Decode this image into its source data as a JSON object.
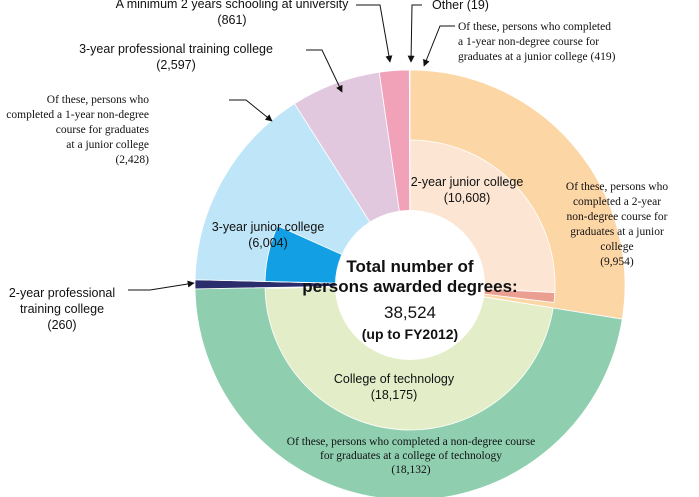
{
  "chart_data": {
    "type": "pie",
    "title": "Total number of persons awarded degrees:",
    "total_label": "Total number of persons awarded degrees:",
    "total_value": "38,524",
    "total_period": "(up to FY2012)",
    "outer_ring": [
      {
        "name": "2-year junior college",
        "value": 10608,
        "value_label": "(10,608)",
        "color": "#fdd6a6"
      },
      {
        "name": "College of technology",
        "value": 18175,
        "value_label": "(18,175)",
        "color": "#8fcfb0"
      },
      {
        "name": "2-year professional training college",
        "value": 260,
        "value_label": "(260)",
        "color": "#2b2c6b"
      },
      {
        "name": "3-year junior college",
        "value": 6004,
        "value_label": "(6,004)",
        "color": "#bfe6f8"
      },
      {
        "name": "3-year professional training college",
        "value": 2597,
        "value_label": "(2,597)",
        "color": "#e2c8de"
      },
      {
        "name": "A minimum 2 years schooling at university",
        "value": 861,
        "value_label": "(861)",
        "color": "#f2a2b8"
      },
      {
        "name": "Other",
        "value": 19,
        "value_label": "(19)",
        "color": "#2a56a4"
      }
    ],
    "inner_subsets": [
      {
        "parent": "2-year junior college",
        "name": "Of these, persons who completed a 2-year non-degree course for graduates at a junior college",
        "value": 9954,
        "value_label": "(9,954)",
        "color": "#fce5d2"
      },
      {
        "parent": "2-year junior college",
        "name": "Of these, persons who completed a 1-year non-degree course for graduates at a junior college",
        "value": 419,
        "value_label": "(419)",
        "color": "#ea9f90"
      },
      {
        "parent": "College of technology",
        "name": "Of these, persons who completed a non-degree course for graduates at a college of technology",
        "value": 18132,
        "value_label": "(18,132)",
        "color": "#e3eec9"
      },
      {
        "parent": "3-year junior college",
        "name": "Of these, persons who completed a 1-year non-degree course for graduates at a junior college",
        "value": 2428,
        "value_label": "(2,428)",
        "color": "#129fe3"
      }
    ],
    "labels": {
      "jc2": {
        "lines": [
          "2-year junior college",
          "(10,608)"
        ]
      },
      "tech": {
        "lines": [
          "College of technology",
          "(18,175)"
        ]
      },
      "jc3": {
        "lines": [
          "3-year junior college",
          "(6,004)"
        ]
      },
      "ptc2": {
        "lines": [
          "2-year professional",
          "training college",
          "(260)"
        ]
      },
      "ptc3": {
        "lines": [
          "3-year professional training college",
          "(2,597)"
        ]
      },
      "univ": {
        "lines": [
          "A minimum 2 years schooling at university",
          "(861)"
        ]
      },
      "other": {
        "lines": [
          "Other  (19)"
        ]
      },
      "jc2_1yr": {
        "lines": [
          "Of these, persons who completed",
          "a 1-year non-degree course for",
          "graduates at a junior college  (419)"
        ]
      },
      "jc2_2yr": {
        "lines": [
          "Of these, persons who",
          "completed a 2-year",
          "non-degree course for",
          "graduates at a junior",
          "college",
          "(9,954)"
        ]
      },
      "tech_sub": {
        "lines": [
          "Of these, persons who completed a non-degree course",
          "for graduates at a college of technology",
          "(18,132)"
        ]
      },
      "jc3_1yr": {
        "lines": [
          "Of these, persons who",
          "completed a 1-year non-degree",
          "course for graduates",
          "at a junior college",
          "(2,428)"
        ]
      }
    }
  }
}
